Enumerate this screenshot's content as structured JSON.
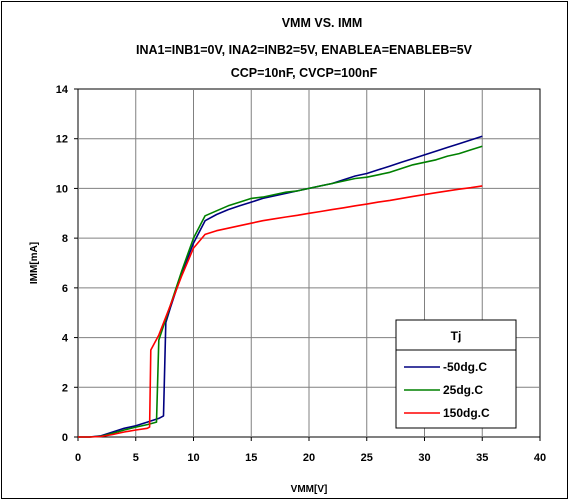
{
  "chart_data": {
    "type": "line",
    "title": [
      "VMM VS. IMM",
      "INA1=INB1=0V, INA2=INB2=5V, ENABLEA=ENABLEB=5V",
      "CCP=10nF, CVCP=100nF"
    ],
    "xlabel": "VMM[V]",
    "ylabel": "IMM[mA]",
    "xlim": [
      0,
      40
    ],
    "ylim": [
      0,
      14
    ],
    "xticks": [
      0,
      5,
      10,
      15,
      20,
      25,
      30,
      35,
      40
    ],
    "yticks": [
      0,
      2,
      4,
      6,
      8,
      10,
      12,
      14
    ],
    "grid": true,
    "legend": {
      "title": "Tj",
      "position": "bottom-right"
    },
    "series": [
      {
        "name": "-50dg.C",
        "color": "#000080",
        "x": [
          0,
          1,
          2,
          3,
          4,
          5,
          6,
          7,
          7.4,
          7.6,
          8,
          9,
          10,
          11,
          12,
          13,
          14,
          15,
          16,
          17,
          18,
          19,
          20,
          21,
          22,
          23,
          24,
          25,
          26,
          27,
          28,
          29,
          30,
          31,
          32,
          33,
          34,
          35
        ],
        "y": [
          0,
          0,
          0.05,
          0.2,
          0.35,
          0.45,
          0.6,
          0.75,
          0.85,
          4.6,
          5.2,
          6.6,
          7.8,
          8.7,
          8.95,
          9.15,
          9.3,
          9.45,
          9.6,
          9.7,
          9.8,
          9.9,
          10.0,
          10.1,
          10.2,
          10.35,
          10.5,
          10.6,
          10.75,
          10.9,
          11.05,
          11.2,
          11.35,
          11.5,
          11.65,
          11.8,
          11.95,
          12.1
        ]
      },
      {
        "name": "25dg.C",
        "color": "#008000",
        "x": [
          0,
          1,
          2,
          3,
          4,
          5,
          6,
          6.8,
          7.0,
          8,
          9,
          10,
          11,
          12,
          13,
          14,
          15,
          16,
          17,
          18,
          19,
          20,
          21,
          22,
          23,
          24,
          25,
          26,
          27,
          28,
          29,
          30,
          31,
          32,
          33,
          34,
          35
        ],
        "y": [
          0,
          0,
          0.03,
          0.15,
          0.28,
          0.4,
          0.5,
          0.6,
          3.9,
          5.3,
          6.7,
          8.0,
          8.9,
          9.1,
          9.3,
          9.45,
          9.6,
          9.65,
          9.75,
          9.85,
          9.9,
          10.0,
          10.1,
          10.2,
          10.3,
          10.4,
          10.45,
          10.55,
          10.65,
          10.8,
          10.95,
          11.05,
          11.15,
          11.3,
          11.4,
          11.55,
          11.7
        ]
      },
      {
        "name": "150dg.C",
        "color": "#ff0000",
        "x": [
          0,
          1,
          2,
          3,
          4,
          5,
          6,
          6.2,
          6.3,
          7,
          8,
          9,
          10,
          11,
          12,
          13,
          14,
          15,
          16,
          17,
          18,
          19,
          20,
          21,
          22,
          23,
          24,
          25,
          26,
          27,
          28,
          29,
          30,
          31,
          32,
          33,
          34,
          35
        ],
        "y": [
          0,
          0,
          0.02,
          0.1,
          0.2,
          0.28,
          0.35,
          0.4,
          3.5,
          4.1,
          5.3,
          6.5,
          7.6,
          8.15,
          8.3,
          8.4,
          8.5,
          8.6,
          8.7,
          8.78,
          8.85,
          8.92,
          9.0,
          9.07,
          9.15,
          9.22,
          9.3,
          9.37,
          9.45,
          9.52,
          9.6,
          9.68,
          9.75,
          9.83,
          9.9,
          9.97,
          10.03,
          10.1
        ]
      }
    ]
  }
}
